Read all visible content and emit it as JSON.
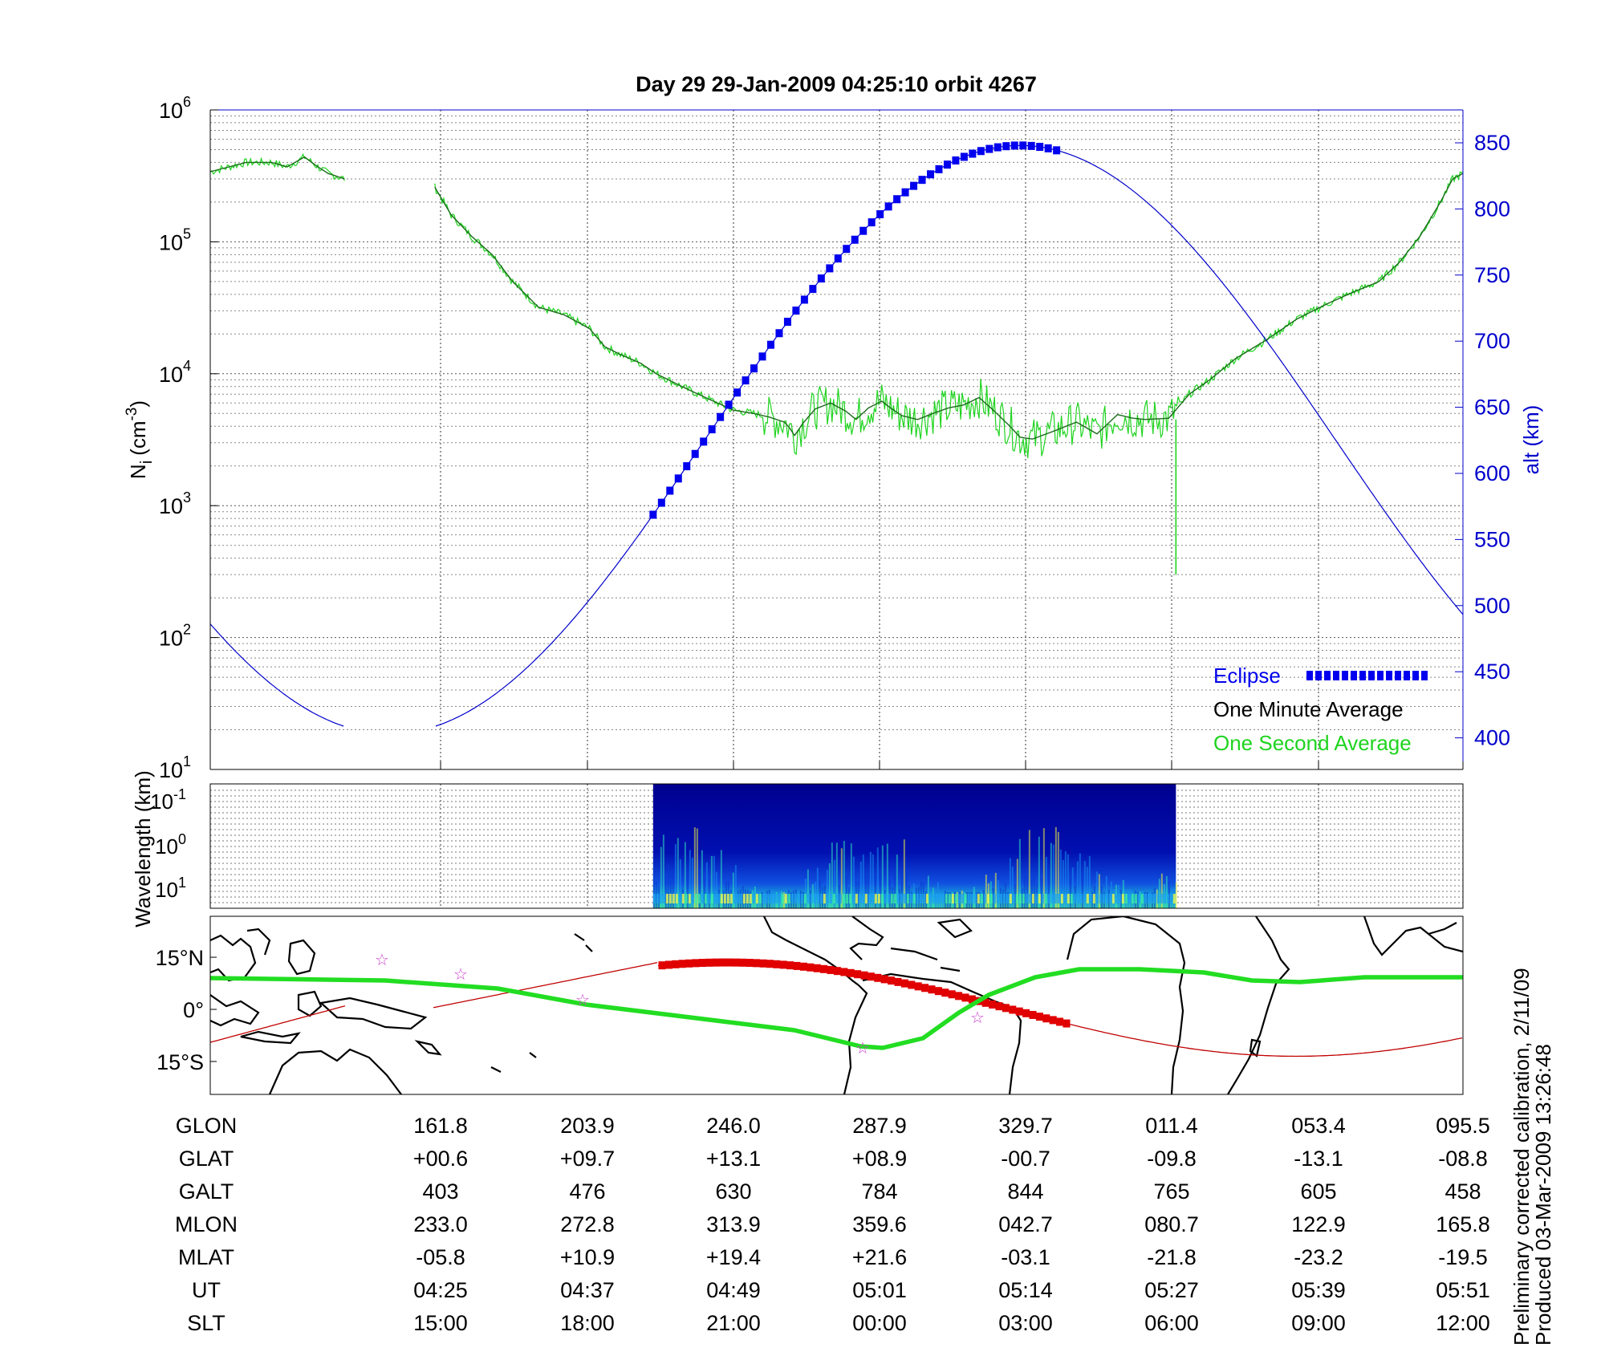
{
  "title": "Day 29  29-Jan-2009 04:25:10   orbit 4267",
  "colors": {
    "one_minute": "#1a6b1a",
    "one_second": "#1fd41f",
    "altitude": "#0000cc",
    "eclipse": "#0000ee",
    "track_alt": "#c00000",
    "footprint": "#22dd22",
    "star": "#cc44cc"
  },
  "top_panel": {
    "ylabel_left": "Ni (cm-3)",
    "ylabel_left_main": "N",
    "ylabel_left_sub": "i",
    "ylabel_left_unit": "(cm",
    "ylabel_left_exp": "-3",
    "ylabel_left_close": ")",
    "ylabel_right": "alt (km)",
    "left_ticks": [
      {
        "base": "10",
        "exp": "6"
      },
      {
        "base": "10",
        "exp": "5"
      },
      {
        "base": "10",
        "exp": "4"
      },
      {
        "base": "10",
        "exp": "3"
      },
      {
        "base": "10",
        "exp": "2"
      },
      {
        "base": "10",
        "exp": "1"
      }
    ],
    "right_ticks": [
      "850",
      "800",
      "750",
      "700",
      "650",
      "600",
      "550",
      "500",
      "450",
      "400"
    ],
    "legend": {
      "eclipse": "Eclipse",
      "one_minute": "One Minute Average",
      "one_second": "One Second Average"
    }
  },
  "middle_panel": {
    "ylabel": "Wavelength (km)",
    "ticks": [
      {
        "base": "10",
        "exp": "-1"
      },
      {
        "base": "10",
        "exp": "0"
      },
      {
        "base": "10",
        "exp": "1"
      }
    ]
  },
  "map_panel": {
    "lat_ticks": [
      "15°N",
      "0°",
      "15°S"
    ]
  },
  "table": {
    "rows": [
      {
        "label": "GLON",
        "values": [
          "161.8",
          "203.9",
          "246.0",
          "287.9",
          "329.7",
          "011.4",
          "053.4",
          "095.5"
        ]
      },
      {
        "label": "GLAT",
        "values": [
          "+00.6",
          "+09.7",
          "+13.1",
          "+08.9",
          "-00.7",
          "-09.8",
          "-13.1",
          "-08.8"
        ]
      },
      {
        "label": "GALT",
        "values": [
          "403",
          "476",
          "630",
          "784",
          "844",
          "765",
          "605",
          "458"
        ]
      },
      {
        "label": "MLON",
        "values": [
          "233.0",
          "272.8",
          "313.9",
          "359.6",
          "042.7",
          "080.7",
          "122.9",
          "165.8"
        ]
      },
      {
        "label": "MLAT",
        "values": [
          "-05.8",
          "+10.9",
          "+19.4",
          "+21.6",
          "-03.1",
          "-21.8",
          "-23.2",
          "-19.5"
        ]
      },
      {
        "label": "UT",
        "values": [
          "04:25",
          "04:37",
          "04:49",
          "05:01",
          "05:14",
          "05:27",
          "05:39",
          "05:51"
        ]
      },
      {
        "label": "SLT",
        "values": [
          "15:00",
          "18:00",
          "21:00",
          "00:00",
          "03:00",
          "06:00",
          "09:00",
          "12:00"
        ]
      }
    ]
  },
  "footer": {
    "line1": "Preliminary corrected calibration, 2/11/09",
    "line2": "Produced 03-Mar-2009 13:26:48"
  },
  "chart_data": [
    {
      "type": "line",
      "title": "Day 29  29-Jan-2009 04:25:10   orbit 4267",
      "ylabel": "Ni (cm-3)",
      "y2label": "alt (km)",
      "yscale": "log",
      "ylim": [
        10,
        1000000
      ],
      "y2lim": [
        378,
        875
      ],
      "x_ut": [
        "04:25",
        "04:37",
        "04:49",
        "05:01",
        "05:14",
        "05:27",
        "05:39",
        "05:51"
      ],
      "legend": [
        "Eclipse",
        "One Minute Average",
        "One Second Average"
      ],
      "legend_position": "bottom-right",
      "grid": true,
      "series": [
        {
          "name": "One Minute Average",
          "segments": [
            [
              [
                0,
                340000
              ],
              [
                35,
                400000
              ],
              [
                60,
                400000
              ],
              [
                75,
                370000
              ],
              [
                92,
                440000
              ],
              [
                105,
                370000
              ],
              [
                115,
                330000
              ],
              [
                131,
                300000
              ]
            ],
            [
              [
                219,
                260000
              ],
              [
                235,
                160000
              ],
              [
                255,
                110000
              ],
              [
                275,
                80000
              ],
              [
                295,
                50000
              ],
              [
                320,
                32000
              ],
              [
                345,
                28000
              ],
              [
                370,
                22000
              ],
              [
                385,
                16000
              ],
              [
                400,
                14000
              ],
              [
                420,
                12000
              ],
              [
                435,
                10000
              ],
              [
                460,
                8000
              ],
              [
                485,
                6500
              ],
              [
                510,
                5300
              ],
              [
                530,
                5000
              ],
              [
                545,
                4700
              ],
              [
                560,
                4300
              ],
              [
                565,
                3900
              ],
              [
                570,
                3400
              ],
              [
                578,
                4200
              ],
              [
                590,
                5400
              ],
              [
                605,
                6000
              ],
              [
                620,
                5200
              ],
              [
                630,
                4500
              ],
              [
                642,
                5500
              ],
              [
                655,
                6200
              ],
              [
                665,
                5400
              ],
              [
                675,
                4800
              ],
              [
                690,
                4500
              ],
              [
                705,
                5000
              ],
              [
                720,
                5500
              ],
              [
                735,
                5800
              ],
              [
                750,
                6600
              ],
              [
                765,
                5200
              ],
              [
                780,
                4000
              ],
              [
                790,
                3300
              ],
              [
                802,
                3200
              ],
              [
                820,
                3600
              ],
              [
                845,
                4300
              ],
              [
                865,
                3500
              ],
              [
                885,
                4900
              ],
              [
                900,
                4600
              ],
              [
                912,
                4500
              ],
              [
                935,
                4600
              ],
              [
                955,
                7000
              ],
              [
                975,
                9000
              ],
              [
                1000,
                13000
              ],
              [
                1030,
                18000
              ],
              [
                1060,
                26000
              ],
              [
                1090,
                34000
              ],
              [
                1110,
                40000
              ],
              [
                1140,
                50000
              ],
              [
                1160,
                70000
              ],
              [
                1180,
                110000
              ],
              [
                1200,
                200000
              ],
              [
                1212,
                300000
              ],
              [
                1222,
                330000
              ]
            ]
          ]
        },
        {
          "name": "One Second Average",
          "spike_x": 942,
          "spike_min": 300
        },
        {
          "name": "alt (km)",
          "values_km": [
            [
              0,
              458
            ],
            [
              131,
              403
            ],
            [
              219,
              403
            ],
            [
              310,
              460
            ],
            [
              432,
              566
            ],
            [
              600,
              730
            ],
            [
              790,
              845
            ],
            [
              830,
              838
            ],
            [
              1000,
              740
            ],
            [
              1100,
              645
            ],
            [
              1222,
              458
            ]
          ]
        },
        {
          "name": "Eclipse",
          "x_range": [
            432,
            832
          ]
        }
      ]
    },
    {
      "type": "heatmap",
      "ylabel": "Wavelength (km)",
      "yticks": [
        "10^-1",
        "10^0",
        "10^1"
      ],
      "x_range_plot": [
        432,
        942
      ]
    },
    {
      "type": "line",
      "chart": "map",
      "lat_ticks": [
        "15°N",
        "0°",
        "15°S"
      ],
      "series": [
        {
          "name": "track",
          "glat": [
            0.6,
            9.7,
            13.1,
            8.9,
            -0.7,
            -9.8,
            -13.1,
            -8.8
          ]
        }
      ]
    }
  ]
}
